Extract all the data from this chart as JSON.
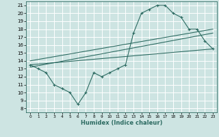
{
  "xlabel": "Humidex (Indice chaleur)",
  "xlim": [
    -0.5,
    23.5
  ],
  "ylim": [
    7.5,
    21.5
  ],
  "xticks": [
    0,
    1,
    2,
    3,
    4,
    5,
    6,
    7,
    8,
    9,
    10,
    11,
    12,
    13,
    14,
    15,
    16,
    17,
    18,
    19,
    20,
    21,
    22,
    23
  ],
  "yticks": [
    8,
    9,
    10,
    11,
    12,
    13,
    14,
    15,
    16,
    17,
    18,
    19,
    20,
    21
  ],
  "bg_color": "#cde4e2",
  "grid_color": "#ffffff",
  "line_color": "#2d6b62",
  "line1_x": [
    0,
    1,
    2,
    3,
    4,
    5,
    6,
    7,
    8,
    9,
    10,
    11,
    12,
    13,
    14,
    15,
    16,
    17,
    18,
    19,
    20,
    21,
    22,
    23
  ],
  "line1_y": [
    13.5,
    13.0,
    12.5,
    11.0,
    10.5,
    10.0,
    8.5,
    10.0,
    12.5,
    12.0,
    12.5,
    13.0,
    13.5,
    17.5,
    20.0,
    20.5,
    21.0,
    21.0,
    20.0,
    19.5,
    18.0,
    18.0,
    16.5,
    15.5
  ],
  "line2_x": [
    0,
    23
  ],
  "line2_y": [
    13.5,
    15.5
  ],
  "line3_x": [
    0,
    23
  ],
  "line3_y": [
    14.0,
    18.0
  ],
  "line4_x": [
    0,
    23
  ],
  "line4_y": [
    13.2,
    17.5
  ]
}
